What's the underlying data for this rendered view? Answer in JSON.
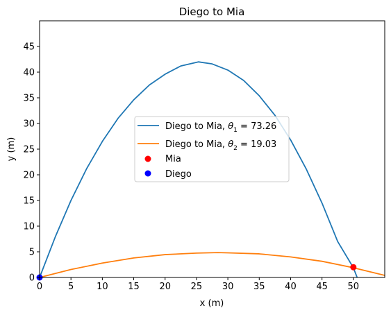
{
  "chart_data": {
    "type": "line",
    "title": "Diego to Mia",
    "xlabel": "x (m)",
    "ylabel": "y (m)",
    "xlim": [
      0,
      55
    ],
    "ylim": [
      0,
      50
    ],
    "xticks": [
      0,
      5,
      10,
      15,
      20,
      25,
      30,
      35,
      40,
      45,
      50
    ],
    "yticks": [
      0,
      5,
      10,
      15,
      20,
      25,
      30,
      35,
      40,
      45
    ],
    "grid": false,
    "legend_position": "center",
    "series": [
      {
        "name": "Diego to Mia, θ1 = 73.26",
        "legend_prefix": "Diego to Mia, ",
        "legend_symbol": "θ",
        "legend_sub": "1",
        "legend_suffix": " = 73.26",
        "color": "#1f77b4",
        "x": [
          0,
          2.5,
          5,
          7.5,
          10,
          12.5,
          15,
          17.5,
          20,
          22.5,
          25.3,
          27.5,
          30,
          32.5,
          35,
          37.5,
          40,
          42.5,
          45,
          47.5,
          50,
          50.6
        ],
        "y": [
          0,
          7.9,
          15.0,
          21.2,
          26.5,
          31.0,
          34.6,
          37.5,
          39.6,
          41.2,
          42.0,
          41.6,
          40.4,
          38.4,
          35.4,
          31.6,
          26.8,
          21.1,
          14.5,
          7.0,
          1.9,
          0
        ]
      },
      {
        "name": "Diego to Mia, θ2 = 19.03",
        "legend_prefix": "Diego to Mia, ",
        "legend_symbol": "θ",
        "legend_sub": "2",
        "legend_suffix": " = 19.03",
        "color": "#ff7f0e",
        "x": [
          0,
          5,
          10,
          15,
          20,
          25,
          28.4,
          30,
          35,
          40,
          45,
          50,
          55
        ],
        "y": [
          0,
          1.55,
          2.8,
          3.8,
          4.45,
          4.75,
          4.85,
          4.8,
          4.6,
          4.0,
          3.15,
          1.9,
          0.4
        ]
      }
    ],
    "points": [
      {
        "name": "Mia",
        "x": 50,
        "y": 2,
        "color": "#ff0000"
      },
      {
        "name": "Diego",
        "x": 0,
        "y": 0,
        "color": "#0000ff"
      }
    ]
  }
}
